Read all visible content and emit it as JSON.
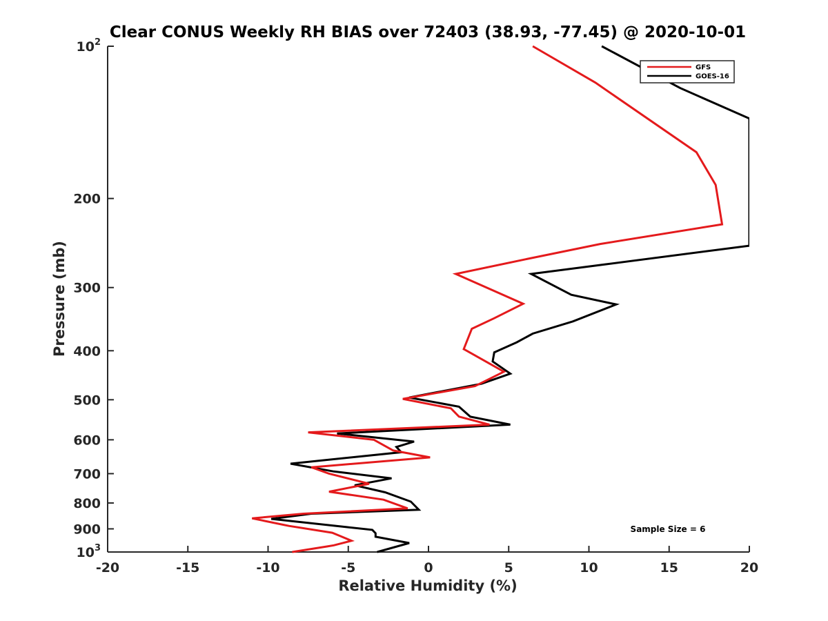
{
  "chart_data": {
    "type": "line",
    "title": "Clear CONUS Weekly RH BIAS over 72403 (38.93, -77.45) @ 2020-10-01",
    "xlabel": "Relative Humidity (%)",
    "ylabel": "Pressure (mb)",
    "xlim": [
      -20,
      20
    ],
    "ylim": [
      1000,
      100
    ],
    "y_scale": "log",
    "y_reversed": true,
    "grid": false,
    "legend_position": "top-right",
    "annotation": "Sample Size = 6",
    "x_ticks": [
      "-20",
      "-15",
      "-10",
      "-5",
      "0",
      "5",
      "10",
      "15",
      "20"
    ],
    "y_ticks": [
      {
        "value": 100,
        "base": "10",
        "exp": "2"
      },
      {
        "value": 200,
        "label": "200"
      },
      {
        "value": 300,
        "label": "300"
      },
      {
        "value": 400,
        "label": "400"
      },
      {
        "value": 500,
        "label": "500"
      },
      {
        "value": 600,
        "label": "600"
      },
      {
        "value": 700,
        "label": "700"
      },
      {
        "value": 800,
        "label": "800"
      },
      {
        "value": 900,
        "label": "900"
      },
      {
        "value": 1000,
        "base": "10",
        "exp": "3"
      }
    ],
    "series": [
      {
        "name": "GFS",
        "color": "#e41a1c",
        "points": [
          [
            6.5,
            100
          ],
          [
            10.4,
            118
          ],
          [
            16.7,
            162
          ],
          [
            17.9,
            188
          ],
          [
            18.3,
            225
          ],
          [
            10.7,
            246
          ],
          [
            6.5,
            262
          ],
          [
            1.7,
            282
          ],
          [
            5.9,
            323
          ],
          [
            4.1,
            345
          ],
          [
            2.7,
            362
          ],
          [
            2.2,
            397
          ],
          [
            4.7,
            440
          ],
          [
            2.9,
            470
          ],
          [
            -1.6,
            498
          ],
          [
            1.4,
            520
          ],
          [
            1.9,
            540
          ],
          [
            3.8,
            560
          ],
          [
            -7.5,
            580
          ],
          [
            -3.4,
            600
          ],
          [
            -2.2,
            630
          ],
          [
            0.1,
            650
          ],
          [
            -7.3,
            680
          ],
          [
            -6.2,
            700
          ],
          [
            -3.7,
            733
          ],
          [
            -6.2,
            760
          ],
          [
            -2.8,
            788
          ],
          [
            -1.3,
            820
          ],
          [
            -7.8,
            840
          ],
          [
            -11.0,
            858
          ],
          [
            -8.7,
            888
          ],
          [
            -6.0,
            916
          ],
          [
            -5.5,
            930
          ],
          [
            -4.8,
            950
          ],
          [
            -5.9,
            970
          ],
          [
            -6.3,
            975
          ],
          [
            -8.5,
            1000
          ]
        ]
      },
      {
        "name": "GOES-16",
        "color": "#000000",
        "points": [
          [
            10.8,
            100
          ],
          [
            15.7,
            121
          ],
          [
            20.0,
            139
          ],
          [
            20.0,
            248
          ],
          [
            6.4,
            282
          ],
          [
            8.9,
            310
          ],
          [
            11.7,
            324
          ],
          [
            9.0,
            350
          ],
          [
            6.5,
            370
          ],
          [
            5.5,
            385
          ],
          [
            4.1,
            403
          ],
          [
            4.0,
            420
          ],
          [
            5.1,
            444
          ],
          [
            3.3,
            465
          ],
          [
            -1.2,
            495
          ],
          [
            1.9,
            516
          ],
          [
            2.6,
            540
          ],
          [
            5.1,
            560
          ],
          [
            -5.7,
            583
          ],
          [
            -0.9,
            605
          ],
          [
            -2.0,
            620
          ],
          [
            -1.7,
            635
          ],
          [
            -8.6,
            669
          ],
          [
            -5.9,
            693
          ],
          [
            -2.3,
            715
          ],
          [
            -4.6,
            738
          ],
          [
            -2.7,
            762
          ],
          [
            -1.1,
            795
          ],
          [
            -0.6,
            825
          ],
          [
            -7.3,
            840
          ],
          [
            -9.8,
            860
          ],
          [
            -3.5,
            904
          ],
          [
            -3.3,
            918
          ],
          [
            -3.3,
            933
          ],
          [
            -1.2,
            960
          ],
          [
            -3.2,
            1000
          ]
        ]
      }
    ]
  }
}
